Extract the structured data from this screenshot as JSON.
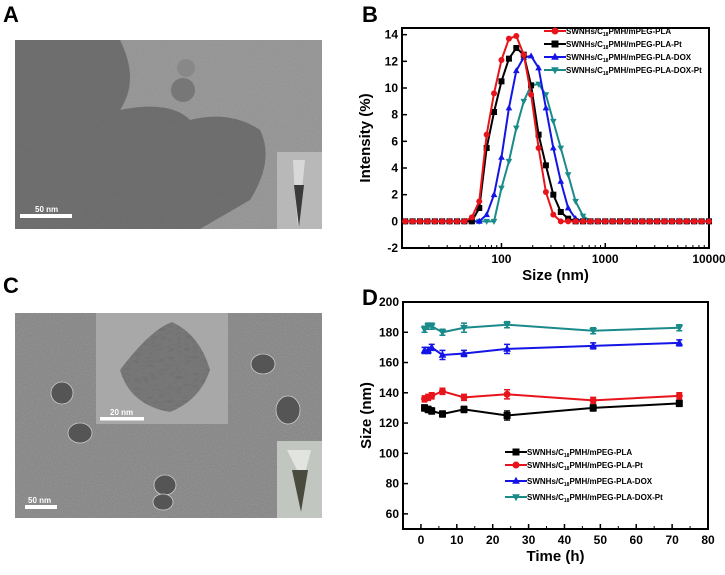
{
  "panels": {
    "a": {
      "label": "A",
      "scale_bar": "50 nm"
    },
    "b": {
      "label": "B"
    },
    "c": {
      "label": "C",
      "scale_bar": "50 nm",
      "inset_scale_bar": "20 nm"
    },
    "d": {
      "label": "D"
    }
  },
  "chart_data": [
    {
      "panel": "B",
      "type": "line",
      "xlabel": "Size (nm)",
      "ylabel": "Intensity (%)",
      "xscale": "log",
      "xlim": [
        11,
        10000
      ],
      "ylim": [
        -2,
        14.5
      ],
      "xticks": [
        "100",
        "1000",
        "10000"
      ],
      "yticks": [
        "-2",
        "0",
        "2",
        "4",
        "6",
        "8",
        "10",
        "12",
        "14"
      ],
      "grid": false,
      "legend": "top-right",
      "x": [
        11.8,
        13.9,
        16.4,
        19.3,
        22.8,
        26.8,
        31.6,
        37.3,
        43.9,
        51.8,
        61.1,
        72.0,
        84.8,
        100,
        118,
        139,
        164,
        193,
        228,
        268,
        316,
        373,
        439,
        518,
        611,
        720,
        848,
        1000,
        1179,
        1389,
        1638,
        1931,
        2276,
        2683,
        3162,
        3728,
        4394,
        5179,
        6105,
        7197,
        8483,
        10000
      ],
      "series": [
        {
          "name": "SWNHs/C18PMH/mPEG-PLA",
          "color": "#e8141b",
          "marker": "circle",
          "values": [
            0,
            0,
            0,
            0,
            0,
            0,
            0,
            0,
            0,
            0.3,
            1.5,
            6.5,
            9.6,
            12.1,
            13.7,
            13.9,
            12.5,
            9.5,
            5.5,
            2.2,
            0.5,
            0,
            0,
            0,
            0,
            0,
            0,
            0,
            0,
            0,
            0,
            0,
            0,
            0,
            0,
            0,
            0,
            0,
            0,
            0,
            0,
            0
          ]
        },
        {
          "name": "SWNHs/C18PMH/mPEG-PLA-Pt",
          "color": "#000000",
          "marker": "square",
          "values": [
            0,
            0,
            0,
            0,
            0,
            0,
            0,
            0,
            0,
            0,
            1.0,
            5.5,
            8.2,
            10.5,
            12.2,
            13.0,
            12.5,
            10.2,
            6.5,
            4.2,
            2.0,
            0.7,
            0.2,
            0,
            0,
            0,
            0,
            0,
            0,
            0,
            0,
            0,
            0,
            0,
            0,
            0,
            0,
            0,
            0,
            0,
            0,
            0
          ]
        },
        {
          "name": "SWNHs/C18PMH/mPEG-PLA-DOX",
          "color": "#1414e6",
          "marker": "triangle-up",
          "values": [
            0,
            0,
            0,
            0,
            0,
            0,
            0,
            0,
            0,
            0,
            0,
            0.5,
            2.0,
            4.8,
            8.5,
            11.3,
            12.3,
            12.4,
            11.5,
            8.5,
            5.5,
            3.0,
            1.0,
            0.2,
            0,
            0,
            0,
            0,
            0,
            0,
            0,
            0,
            0,
            0,
            0,
            0,
            0,
            0,
            0,
            0,
            0,
            0
          ]
        },
        {
          "name": "SWNHs/C18PMH/mPEG-PLA-DOX-Pt",
          "color": "#1a8a8a",
          "marker": "triangle-down",
          "values": [
            0,
            0,
            0,
            0,
            0,
            0,
            0,
            0,
            0,
            0,
            0,
            0,
            0,
            2.5,
            4.5,
            7.0,
            9.0,
            10.2,
            10.3,
            9.5,
            7.5,
            5.5,
            3.5,
            1.5,
            0.4,
            0,
            0,
            0,
            0,
            0,
            0,
            0,
            0,
            0,
            0,
            0,
            0,
            0,
            0,
            0,
            0,
            0
          ]
        }
      ]
    },
    {
      "panel": "D",
      "type": "line",
      "xlabel": "Time (h)",
      "ylabel": "Size (nm)",
      "xlim": [
        -5,
        80
      ],
      "ylim": [
        50,
        200
      ],
      "xticks": [
        "0",
        "10",
        "20",
        "30",
        "40",
        "50",
        "60",
        "70",
        "80"
      ],
      "yticks": [
        "60",
        "80",
        "100",
        "120",
        "140",
        "160",
        "180",
        "200"
      ],
      "grid": false,
      "legend": "bottom-center",
      "x": [
        1,
        2,
        3,
        6,
        12,
        24,
        48,
        72
      ],
      "series": [
        {
          "name": "SWNHs/C18PMH/mPEG-PLA",
          "color": "#000000",
          "marker": "square",
          "values": [
            130,
            129,
            128,
            126,
            129,
            125,
            130,
            133
          ],
          "errors": [
            2,
            2,
            2,
            2,
            2,
            3,
            2,
            2
          ]
        },
        {
          "name": "SWNHs/C18PMH/mPEG-PLA-Pt",
          "color": "#e8141b",
          "marker": "circle",
          "values": [
            136,
            137,
            138,
            141,
            137,
            139,
            135,
            138
          ],
          "errors": [
            2,
            2,
            2,
            2,
            2,
            3,
            2,
            2
          ]
        },
        {
          "name": "SWNHs/C18PMH/mPEG-PLA-DOX",
          "color": "#1414e6",
          "marker": "triangle-up",
          "values": [
            168,
            168,
            170,
            165,
            166,
            169,
            171,
            173
          ],
          "errors": [
            2,
            2,
            2,
            3,
            2,
            3,
            2,
            2
          ]
        },
        {
          "name": "SWNHs/C18PMH/mPEG-PLA-DOX-Pt",
          "color": "#1a8a8a",
          "marker": "triangle-down",
          "values": [
            182,
            184,
            184,
            180,
            183,
            185,
            181,
            183
          ],
          "errors": [
            2,
            2,
            2,
            2,
            3,
            2,
            2,
            2
          ]
        }
      ]
    }
  ]
}
